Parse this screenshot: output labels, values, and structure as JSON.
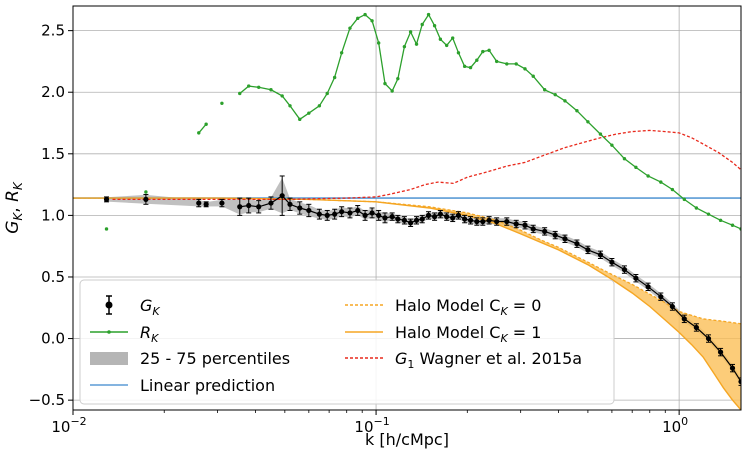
{
  "chart_data": {
    "type": "line",
    "xscale": "log",
    "xlim": [
      0.01,
      1.6
    ],
    "ylim": [
      -0.58,
      2.7
    ],
    "grid": true,
    "xlabel": "k [h/cMpc]",
    "ylabel": "G_K, R_K",
    "xticks": [
      {
        "value": 0.01,
        "base": "10",
        "exp": "−2"
      },
      {
        "value": 0.1,
        "base": "10",
        "exp": "−1"
      },
      {
        "value": 1,
        "base": "10",
        "exp": "0"
      }
    ],
    "yticks": [
      {
        "value": -0.5,
        "label": "−0.5"
      },
      {
        "value": 0.0,
        "label": "0.0"
      },
      {
        "value": 0.5,
        "label": "0.5"
      },
      {
        "value": 1.0,
        "label": "1.0"
      },
      {
        "value": 1.5,
        "label": "1.5"
      },
      {
        "value": 2.0,
        "label": "2.0"
      },
      {
        "value": 2.5,
        "label": "2.5"
      }
    ],
    "legend": {
      "placement": "lower-left",
      "entries": [
        {
          "key": "G_K",
          "label": "G",
          "sub": "K",
          "color": "#000000",
          "style": "errorbar"
        },
        {
          "key": "R_K",
          "label": "R",
          "sub": "K",
          "color": "#2ca02c",
          "style": "line-marker"
        },
        {
          "key": "pct",
          "label": "25 - 75 percentiles",
          "color": "#b5b5b5",
          "style": "patch"
        },
        {
          "key": "lin",
          "label": "Linear prediction",
          "color": "#5b9bd5",
          "style": "line"
        },
        {
          "key": "hm0",
          "label": "Halo Model C",
          "sub": "K",
          "suffix": " = 0",
          "color": "#f5a623",
          "style": "dashed"
        },
        {
          "key": "hm1",
          "label": "Halo Model C",
          "sub": "K",
          "suffix": " = 1",
          "color": "#f5a623",
          "style": "line"
        },
        {
          "key": "wag",
          "label": "G",
          "sub": "1",
          "suffix": " Wagner et al. 2015a",
          "color": "#e8291c",
          "style": "dashed"
        }
      ]
    },
    "series": [
      {
        "name": "Linear prediction",
        "color": "#5b9bd5",
        "x": [
          0.01,
          1.6
        ],
        "y": [
          1.14,
          1.14
        ]
      },
      {
        "name": "R_K",
        "color": "#2ca02c",
        "x": [
          0.0129,
          0.0174,
          0.026,
          0.0275,
          0.031,
          0.0355,
          0.038,
          0.041,
          0.045,
          0.049,
          0.052,
          0.056,
          0.06,
          0.065,
          0.069,
          0.073,
          0.077,
          0.082,
          0.087,
          0.092,
          0.097,
          0.102,
          0.107,
          0.113,
          0.118,
          0.124,
          0.13,
          0.136,
          0.142,
          0.149,
          0.156,
          0.163,
          0.171,
          0.179,
          0.187,
          0.196,
          0.205,
          0.215,
          0.225,
          0.236,
          0.25,
          0.27,
          0.29,
          0.31,
          0.33,
          0.36,
          0.39,
          0.42,
          0.46,
          0.5,
          0.55,
          0.6,
          0.66,
          0.72,
          0.79,
          0.87,
          0.95,
          1.04,
          1.14,
          1.25,
          1.37,
          1.5,
          1.6
        ],
        "y": [
          0.89,
          1.19,
          1.67,
          1.74,
          1.91,
          1.99,
          2.05,
          2.04,
          2.02,
          1.97,
          1.89,
          1.78,
          1.83,
          1.89,
          1.99,
          2.12,
          2.32,
          2.52,
          2.6,
          2.63,
          2.58,
          2.4,
          2.07,
          2.01,
          2.11,
          2.37,
          2.49,
          2.39,
          2.55,
          2.63,
          2.54,
          2.43,
          2.38,
          2.44,
          2.32,
          2.21,
          2.2,
          2.26,
          2.33,
          2.34,
          2.25,
          2.23,
          2.23,
          2.19,
          2.13,
          2.02,
          1.98,
          1.93,
          1.85,
          1.76,
          1.66,
          1.57,
          1.46,
          1.39,
          1.32,
          1.27,
          1.21,
          1.13,
          1.06,
          1.01,
          0.96,
          0.92,
          0.89
        ]
      },
      {
        "name": "G_1 Wagner et al. 2015a",
        "color": "#e8291c",
        "x": [
          0.0135,
          0.03,
          0.05,
          0.08,
          0.1,
          0.11,
          0.13,
          0.145,
          0.16,
          0.18,
          0.2,
          0.23,
          0.27,
          0.31,
          0.36,
          0.42,
          0.48,
          0.55,
          0.62,
          0.7,
          0.8,
          0.9,
          1.0,
          1.1,
          1.2,
          1.35,
          1.5,
          1.6
        ],
        "y": [
          1.13,
          1.13,
          1.13,
          1.14,
          1.15,
          1.17,
          1.21,
          1.25,
          1.27,
          1.26,
          1.31,
          1.35,
          1.4,
          1.43,
          1.49,
          1.55,
          1.59,
          1.63,
          1.66,
          1.68,
          1.69,
          1.68,
          1.67,
          1.63,
          1.58,
          1.51,
          1.43,
          1.37
        ]
      },
      {
        "name": "Halo Model C_K = 0",
        "color": "#f5a623",
        "x": [
          0.01,
          0.03,
          0.06,
          0.1,
          0.15,
          0.2,
          0.25,
          0.3,
          0.35,
          0.4,
          0.5,
          0.6,
          0.7,
          0.8,
          0.9,
          1.0,
          1.2,
          1.4,
          1.6
        ],
        "y": [
          1.14,
          1.14,
          1.13,
          1.11,
          1.07,
          1.02,
          0.96,
          0.88,
          0.8,
          0.74,
          0.62,
          0.52,
          0.44,
          0.36,
          0.29,
          0.22,
          0.16,
          0.14,
          0.12
        ]
      },
      {
        "name": "Halo Model C_K = 1",
        "color": "#f5a623",
        "x": [
          0.01,
          0.03,
          0.06,
          0.1,
          0.15,
          0.2,
          0.25,
          0.3,
          0.35,
          0.4,
          0.5,
          0.6,
          0.7,
          0.8,
          0.9,
          1.0,
          1.1,
          1.2,
          1.3,
          1.4,
          1.5,
          1.6
        ],
        "y": [
          1.14,
          1.14,
          1.13,
          1.11,
          1.06,
          1.0,
          0.93,
          0.85,
          0.78,
          0.72,
          0.6,
          0.48,
          0.37,
          0.26,
          0.15,
          0.05,
          -0.05,
          -0.15,
          -0.28,
          -0.4,
          -0.5,
          -0.58
        ]
      },
      {
        "name": "G_K",
        "color": "#000000",
        "x": [
          0.0129,
          0.0174,
          0.026,
          0.0275,
          0.031,
          0.0355,
          0.038,
          0.041,
          0.045,
          0.049,
          0.052,
          0.056,
          0.06,
          0.065,
          0.069,
          0.073,
          0.077,
          0.082,
          0.087,
          0.092,
          0.097,
          0.102,
          0.107,
          0.113,
          0.118,
          0.124,
          0.13,
          0.136,
          0.142,
          0.149,
          0.156,
          0.163,
          0.171,
          0.179,
          0.187,
          0.196,
          0.205,
          0.215,
          0.225,
          0.236,
          0.25,
          0.27,
          0.29,
          0.31,
          0.33,
          0.36,
          0.39,
          0.42,
          0.46,
          0.5,
          0.55,
          0.6,
          0.66,
          0.72,
          0.79,
          0.87,
          0.95,
          1.04,
          1.14,
          1.25,
          1.37,
          1.5,
          1.6
        ],
        "y": [
          1.13,
          1.13,
          1.1,
          1.09,
          1.1,
          1.07,
          1.08,
          1.07,
          1.1,
          1.16,
          1.09,
          1.06,
          1.04,
          1.01,
          1.0,
          1.01,
          1.03,
          1.02,
          1.04,
          1.0,
          1.02,
          1.0,
          0.98,
          0.99,
          0.97,
          0.96,
          0.94,
          0.96,
          0.97,
          1.0,
          0.99,
          1.01,
          0.99,
          0.98,
          1.0,
          0.97,
          0.96,
          0.95,
          0.95,
          0.96,
          0.95,
          0.95,
          0.93,
          0.92,
          0.89,
          0.87,
          0.84,
          0.81,
          0.77,
          0.72,
          0.68,
          0.62,
          0.56,
          0.49,
          0.42,
          0.34,
          0.26,
          0.16,
          0.09,
          0.0,
          -0.11,
          -0.24,
          -0.35
        ],
        "err": [
          0.02,
          0.04,
          0.03,
          0.02,
          0.03,
          0.07,
          0.06,
          0.05,
          0.05,
          0.16,
          0.05,
          0.05,
          0.05,
          0.04,
          0.04,
          0.04,
          0.04,
          0.04,
          0.04,
          0.04,
          0.04,
          0.04,
          0.04,
          0.03,
          0.03,
          0.03,
          0.03,
          0.03,
          0.03,
          0.03,
          0.03,
          0.03,
          0.03,
          0.03,
          0.03,
          0.03,
          0.03,
          0.03,
          0.03,
          0.03,
          0.03,
          0.03,
          0.03,
          0.03,
          0.03,
          0.03,
          0.03,
          0.03,
          0.03,
          0.03,
          0.03,
          0.03,
          0.03,
          0.03,
          0.03,
          0.03,
          0.03,
          0.03,
          0.03,
          0.03,
          0.03,
          0.03,
          0.03
        ]
      }
    ]
  }
}
